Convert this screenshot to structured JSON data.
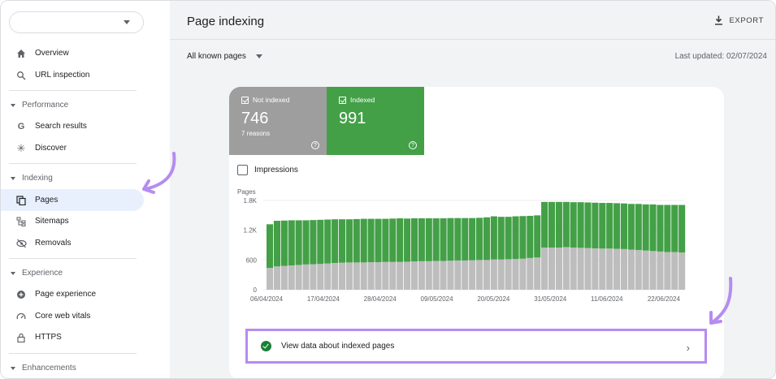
{
  "sidebar": {
    "items_top": [
      {
        "label": "Overview",
        "icon": "home-icon"
      },
      {
        "label": "URL inspection",
        "icon": "search-icon"
      }
    ],
    "sections": [
      {
        "title": "Performance",
        "items": [
          {
            "label": "Search results",
            "icon": "google-g-icon"
          },
          {
            "label": "Discover",
            "icon": "asterisk-icon"
          }
        ]
      },
      {
        "title": "Indexing",
        "items": [
          {
            "label": "Pages",
            "icon": "pages-icon"
          },
          {
            "label": "Sitemaps",
            "icon": "sitemap-icon"
          },
          {
            "label": "Removals",
            "icon": "eye-off-icon"
          }
        ]
      },
      {
        "title": "Experience",
        "items": [
          {
            "label": "Page experience",
            "icon": "plus-circle-icon"
          },
          {
            "label": "Core web vitals",
            "icon": "gauge-icon"
          },
          {
            "label": "HTTPS",
            "icon": "lock-icon"
          }
        ]
      },
      {
        "title": "Enhancements",
        "items": []
      }
    ],
    "active_item": "Pages"
  },
  "header": {
    "title": "Page indexing",
    "export_label": "EXPORT",
    "filter_label": "All known pages",
    "last_updated": "Last updated: 02/07/2024"
  },
  "summary": {
    "not_indexed": {
      "label": "Not indexed",
      "value": "746",
      "sub": "7 reasons",
      "color": "#9e9e9e"
    },
    "indexed": {
      "label": "Indexed",
      "value": "991",
      "color": "#43a047"
    }
  },
  "impressions_label": "Impressions",
  "view_link": "View data about indexed pages",
  "accent_color": "#b58cf0",
  "chart_data": {
    "type": "bar",
    "stacked": true,
    "ylabel": "Pages",
    "ylim": [
      0,
      1800
    ],
    "yticks": [
      "0",
      "600",
      "1.2K",
      "1.8K"
    ],
    "xticks": [
      "06/04/2024",
      "17/04/2024",
      "28/04/2024",
      "09/05/2024",
      "20/05/2024",
      "31/05/2024",
      "11/06/2024",
      "22/06/2024"
    ],
    "series": [
      {
        "name": "Not indexed",
        "color": "#bdbdbd",
        "values": [
          440,
          470,
          480,
          490,
          500,
          510,
          515,
          520,
          530,
          540,
          545,
          550,
          550,
          550,
          555,
          555,
          560,
          560,
          560,
          565,
          570,
          575,
          575,
          580,
          580,
          585,
          590,
          590,
          595,
          600,
          600,
          610,
          610,
          615,
          620,
          625,
          640,
          650,
          850,
          850,
          850,
          860,
          850,
          845,
          840,
          835,
          830,
          830,
          825,
          820,
          810,
          800,
          790,
          780,
          770,
          760,
          760,
          750
        ]
      },
      {
        "name": "Indexed",
        "color": "#43a047",
        "values": [
          880,
          920,
          915,
          910,
          900,
          890,
          890,
          890,
          885,
          880,
          875,
          870,
          875,
          880,
          875,
          875,
          870,
          875,
          880,
          870,
          870,
          865,
          865,
          860,
          860,
          860,
          855,
          855,
          850,
          850,
          860,
          870,
          860,
          855,
          860,
          860,
          850,
          850,
          920,
          920,
          920,
          910,
          915,
          920,
          920,
          920,
          920,
          920,
          920,
          920,
          920,
          930,
          930,
          940,
          940,
          950,
          950,
          960
        ]
      }
    ]
  }
}
